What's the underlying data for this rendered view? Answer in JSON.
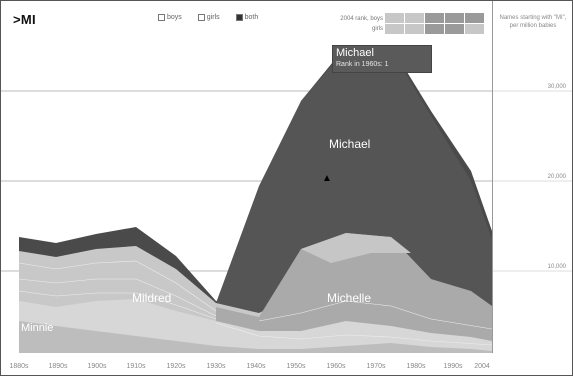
{
  "header": {
    "query_text": ">MI",
    "filters": [
      {
        "label": "boys",
        "checked": false
      },
      {
        "label": "girls",
        "checked": false
      },
      {
        "label": "both",
        "checked": true
      }
    ],
    "rank_labels": [
      "2004 rank, boys",
      "girls"
    ],
    "rank_cells": [
      "",
      "",
      "",
      "",
      "",
      "",
      "",
      "",
      "",
      ""
    ]
  },
  "side_caption": "Names starting with \"MI\", per million babies",
  "y_ticks": [
    "30,000",
    "20,000",
    "10,000"
  ],
  "x_ticks": [
    "1880s",
    "1890s",
    "1900s",
    "1910s",
    "1920s",
    "1930s",
    "1940s",
    "1950s",
    "1960s",
    "1970s",
    "1980s",
    "1990s",
    "2004"
  ],
  "tooltip": {
    "title": "Michael",
    "subtitle": "Rank in 1960s: 1"
  },
  "labels": {
    "michael": "Michael",
    "mildred": "Mildred",
    "michelle": "Michelle",
    "minnie": "Minnie"
  },
  "colors": {
    "michael": "#555555",
    "michelle": "#aaaaaa",
    "mildred": "#c8c8c8",
    "background_band": "#d7d7d7"
  }
}
